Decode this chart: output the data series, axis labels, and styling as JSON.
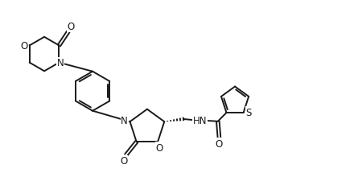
{
  "bg_color": "#ffffff",
  "line_color": "#1a1a1a",
  "line_width": 1.4,
  "font_size": 8.5,
  "figsize": [
    4.45,
    2.26
  ],
  "dpi": 100,
  "xlim": [
    0,
    10.5
  ],
  "ylim": [
    0,
    5.5
  ]
}
